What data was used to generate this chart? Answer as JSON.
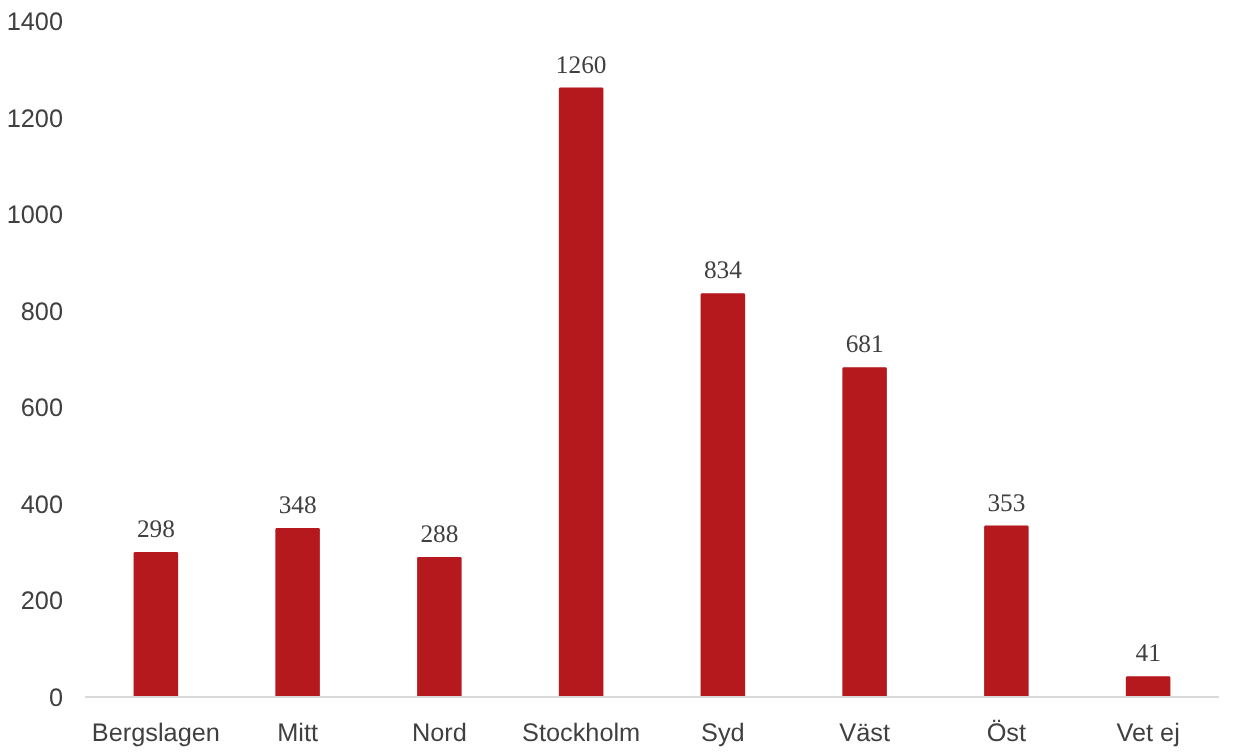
{
  "chart_data": {
    "type": "bar",
    "categories": [
      "Bergslagen",
      "Mitt",
      "Nord",
      "Stockholm",
      "Syd",
      "Väst",
      "Öst",
      "Vet ej"
    ],
    "values": [
      298,
      348,
      288,
      1260,
      834,
      681,
      353,
      41
    ],
    "color": "#b5191e",
    "ylim": [
      0,
      1400
    ],
    "yticks": [
      0,
      200,
      400,
      600,
      800,
      1000,
      1200,
      1400
    ],
    "grid": false,
    "data_labels": true
  }
}
